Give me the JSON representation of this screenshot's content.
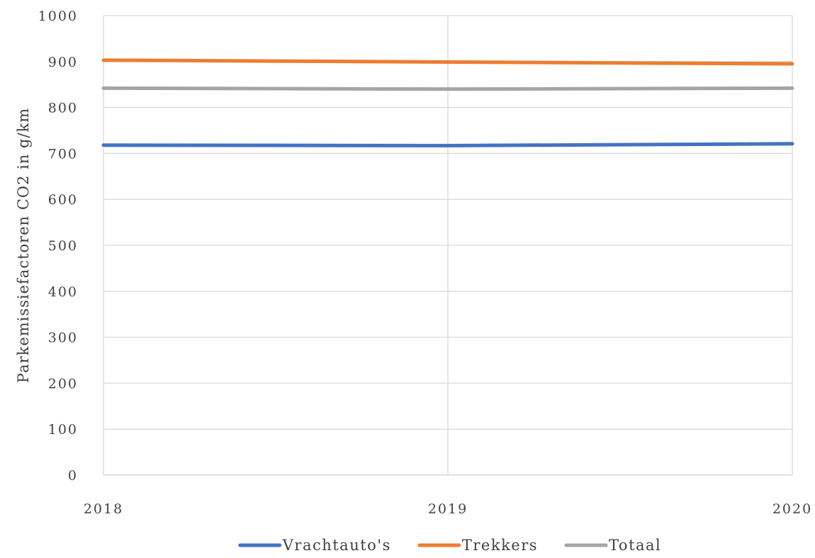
{
  "chart_data": {
    "type": "line",
    "title": "",
    "xlabel": "",
    "ylabel": "Parkemissiefactoren CO2 in g/km",
    "x": [
      "2018",
      "2019",
      "2020"
    ],
    "y_ticks": [
      "0",
      "100",
      "200",
      "300",
      "400",
      "500",
      "600",
      "700",
      "800",
      "900",
      "1000"
    ],
    "ylim": [
      0,
      1000
    ],
    "grid": {
      "horizontal": true,
      "vertical": true
    },
    "legend_position": "bottom",
    "series": [
      {
        "name": "Vrachtauto's",
        "color": "#4472C4",
        "values": [
          718,
          717,
          721
        ]
      },
      {
        "name": "Trekkers",
        "color": "#ED7D31",
        "values": [
          903,
          899,
          895
        ]
      },
      {
        "name": "Totaal",
        "color": "#A5A5A5",
        "values": [
          842,
          840,
          842
        ]
      }
    ]
  }
}
